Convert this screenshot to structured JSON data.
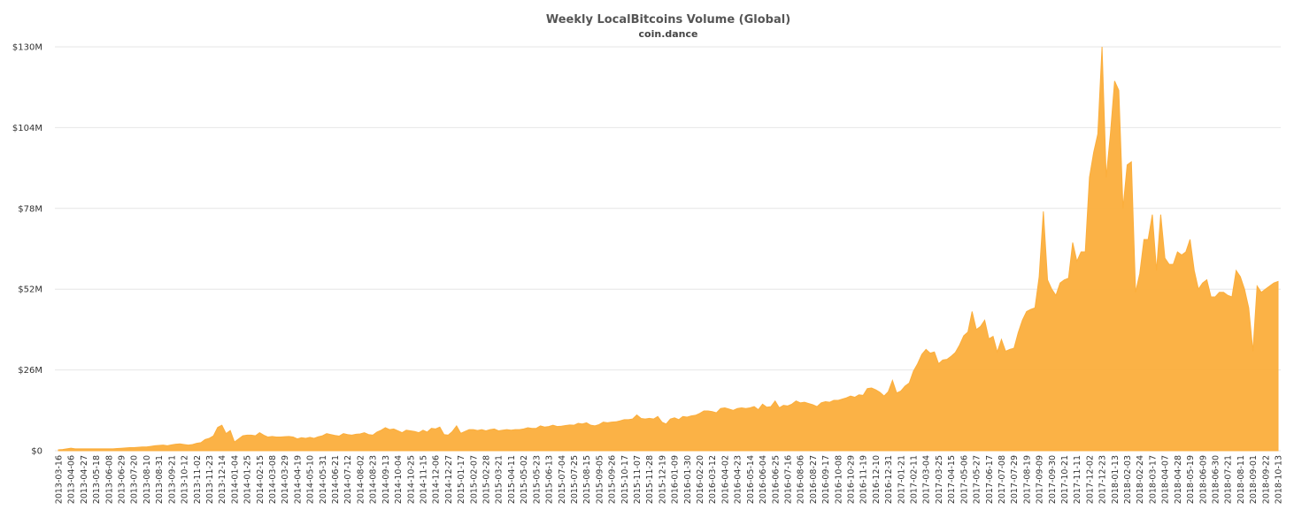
{
  "chart_data": {
    "type": "area",
    "title": "Weekly LocalBitcoins Volume (Global)",
    "subtitle": "coin.dance",
    "categories": [
      "2013-03-16",
      null,
      null,
      "2013-04-06",
      null,
      null,
      "2013-04-27",
      null,
      null,
      "2013-05-18",
      null,
      null,
      "2013-06-08",
      null,
      null,
      "2013-06-29",
      null,
      null,
      "2013-07-20",
      null,
      null,
      "2013-08-10",
      null,
      null,
      "2013-08-31",
      null,
      null,
      "2013-09-21",
      null,
      null,
      "2013-10-12",
      null,
      null,
      "2013-11-02",
      null,
      null,
      "2013-11-23",
      null,
      null,
      "2013-12-14",
      null,
      null,
      "2014-01-04",
      null,
      null,
      "2014-01-25",
      null,
      null,
      "2014-02-15",
      null,
      null,
      "2014-03-08",
      null,
      null,
      "2014-03-29",
      null,
      null,
      "2014-04-19",
      null,
      null,
      "2014-05-10",
      null,
      null,
      "2014-05-31",
      null,
      null,
      "2014-06-21",
      null,
      null,
      "2014-07-12",
      null,
      null,
      "2014-08-02",
      null,
      null,
      "2014-08-23",
      null,
      null,
      "2014-09-13",
      null,
      null,
      "2014-10-04",
      null,
      null,
      "2014-10-25",
      null,
      null,
      "2014-11-15",
      null,
      null,
      "2014-12-06",
      null,
      null,
      "2014-12-27",
      null,
      null,
      "2015-01-17",
      null,
      null,
      "2015-02-07",
      null,
      null,
      "2015-02-28",
      null,
      null,
      "2015-03-21",
      null,
      null,
      "2015-04-11",
      null,
      null,
      "2015-05-02",
      null,
      null,
      "2015-05-23",
      null,
      null,
      "2015-06-13",
      null,
      null,
      "2015-07-04",
      null,
      null,
      "2015-07-25",
      null,
      null,
      "2015-08-15",
      null,
      null,
      "2015-09-05",
      null,
      null,
      "2015-09-26",
      null,
      null,
      "2015-10-17",
      null,
      null,
      "2015-11-07",
      null,
      null,
      "2015-11-28",
      null,
      null,
      "2015-12-19",
      null,
      null,
      "2016-01-09",
      null,
      null,
      "2016-01-30",
      null,
      null,
      "2016-02-20",
      null,
      null,
      "2016-03-12",
      null,
      null,
      "2016-04-02",
      null,
      null,
      "2016-04-23",
      null,
      null,
      "2016-05-14",
      null,
      null,
      "2016-06-04",
      null,
      null,
      "2016-06-25",
      null,
      null,
      "2016-07-16",
      null,
      null,
      "2016-08-06",
      null,
      null,
      "2016-08-27",
      null,
      null,
      "2016-09-17",
      null,
      null,
      "2016-10-08",
      null,
      null,
      "2016-10-29",
      null,
      null,
      "2016-11-19",
      null,
      null,
      "2016-12-10",
      null,
      null,
      "2016-12-31",
      null,
      null,
      "2017-01-21",
      null,
      null,
      "2017-02-11",
      null,
      null,
      "2017-03-04",
      null,
      null,
      "2017-03-25",
      null,
      null,
      "2017-04-15",
      null,
      null,
      "2017-05-06",
      null,
      null,
      "2017-05-27",
      null,
      null,
      "2017-06-17",
      null,
      null,
      "2017-07-08",
      null,
      null,
      "2017-07-29",
      null,
      null,
      "2017-08-19",
      null,
      null,
      "2017-09-09",
      null,
      null,
      "2017-09-30",
      null,
      null,
      "2017-10-21",
      null,
      null,
      "2017-11-11",
      null,
      null,
      "2017-12-02",
      null,
      null,
      "2017-12-23",
      null,
      null,
      "2018-01-13",
      null,
      null,
      "2018-02-03",
      null,
      null,
      "2018-02-24",
      null,
      null,
      "2018-03-17",
      null,
      null,
      "2018-04-07",
      null,
      null,
      "2018-04-28",
      null,
      null,
      "2018-05-19",
      null,
      null,
      "2018-06-09",
      null,
      null,
      "2018-06-30",
      null,
      null,
      "2018-07-21",
      null,
      null,
      "2018-08-11",
      null,
      null,
      "2018-09-01",
      null,
      null,
      "2018-09-22",
      null,
      null,
      "2018-10-13"
    ],
    "values": [
      0.3,
      0.4,
      0.6,
      0.8,
      0.6,
      0.6,
      0.6,
      0.6,
      0.6,
      0.6,
      0.6,
      0.6,
      0.6,
      0.6,
      0.7,
      0.8,
      0.9,
      1.0,
      1.0,
      1.1,
      1.2,
      1.2,
      1.4,
      1.6,
      1.7,
      1.8,
      1.6,
      1.9,
      2.1,
      2.2,
      2.0,
      1.8,
      2.0,
      2.4,
      2.6,
      3.6,
      4.0,
      4.8,
      7.5,
      8.2,
      5.5,
      6.5,
      2.8,
      3.8,
      4.8,
      5.0,
      5.0,
      4.8,
      5.8,
      5.0,
      4.4,
      4.6,
      4.4,
      4.4,
      4.5,
      4.6,
      4.4,
      3.8,
      4.2,
      4.0,
      4.3,
      4.0,
      4.5,
      4.8,
      5.5,
      5.2,
      4.9,
      4.7,
      5.5,
      5.2,
      5.0,
      5.3,
      5.4,
      5.8,
      5.2,
      5.0,
      6.0,
      6.6,
      7.4,
      6.8,
      7.0,
      6.4,
      5.8,
      6.6,
      6.4,
      6.2,
      5.8,
      6.6,
      6.0,
      7.2,
      7.0,
      7.6,
      5.2,
      5.0,
      6.2,
      8.0,
      5.6,
      6.2,
      6.8,
      6.8,
      6.5,
      6.8,
      6.4,
      6.8,
      7.0,
      6.4,
      6.6,
      6.8,
      6.6,
      6.8,
      6.8,
      7.0,
      7.4,
      7.2,
      7.2,
      8.0,
      7.6,
      7.8,
      8.2,
      7.8,
      7.9,
      8.1,
      8.3,
      8.2,
      8.8,
      8.6,
      9.0,
      8.2,
      8.0,
      8.4,
      9.2,
      9.0,
      9.2,
      9.3,
      9.6,
      10.0,
      10.0,
      10.2,
      11.5,
      10.4,
      10.2,
      10.4,
      10.2,
      11.0,
      9.2,
      8.6,
      10.2,
      10.6,
      10.0,
      11.0,
      10.8,
      11.2,
      11.4,
      12.0,
      12.8,
      12.8,
      12.6,
      12.2,
      13.6,
      13.8,
      13.4,
      13.0,
      13.6,
      13.8,
      13.6,
      13.8,
      14.2,
      13.2,
      15.0,
      14.0,
      14.2,
      16.0,
      13.8,
      14.6,
      14.4,
      15.0,
      16.0,
      15.4,
      15.6,
      15.2,
      14.8,
      14.2,
      15.4,
      15.8,
      15.6,
      16.2,
      16.2,
      16.6,
      17.0,
      17.6,
      17.2,
      18.0,
      17.8,
      20.0,
      20.2,
      19.6,
      18.8,
      17.6,
      19.0,
      22.6,
      18.6,
      19.2,
      20.8,
      21.8,
      25.6,
      28.0,
      31.0,
      32.6,
      31.4,
      31.8,
      28.0,
      29.2,
      29.4,
      30.4,
      31.6,
      34.0,
      37.0,
      38.2,
      44.8,
      39.0,
      40.0,
      42.0,
      36.0,
      36.8,
      31.8,
      35.8,
      32.0,
      32.6,
      33.0,
      38.0,
      42.0,
      44.8,
      45.5,
      46.0,
      56.0,
      77.0,
      55.0,
      52.0,
      50.0,
      54.0,
      55.0,
      55.5,
      67.0,
      61.0,
      64.0,
      64.0,
      88.0,
      96.0,
      102.0,
      130.0,
      88.0,
      102.0,
      119.0,
      116.0,
      78.0,
      92.0,
      93.0,
      51.0,
      57.0,
      68.0,
      68.0,
      76.0,
      58.0,
      76.0,
      62.0,
      60.0,
      60.0,
      64.0,
      63.0,
      64.0,
      68.0,
      58.0,
      52.0,
      54.0,
      55.0,
      49.5,
      49.5,
      51.0,
      51.0,
      50.0,
      49.5,
      58.0,
      56.0,
      52.0,
      46.0,
      32.0,
      53.0,
      51.0,
      52.0,
      53.0,
      54.0,
      54.5
    ],
    "color": "#fbae3c",
    "ylim": [
      0,
      130
    ],
    "yticks": [
      {
        "value": 0,
        "label": "$0"
      },
      {
        "value": 26,
        "label": "$26M"
      },
      {
        "value": 52,
        "label": "$52M"
      },
      {
        "value": 78,
        "label": "$78M"
      },
      {
        "value": 104,
        "label": "$104M"
      },
      {
        "value": 130,
        "label": "$130M"
      }
    ],
    "grid": true
  }
}
